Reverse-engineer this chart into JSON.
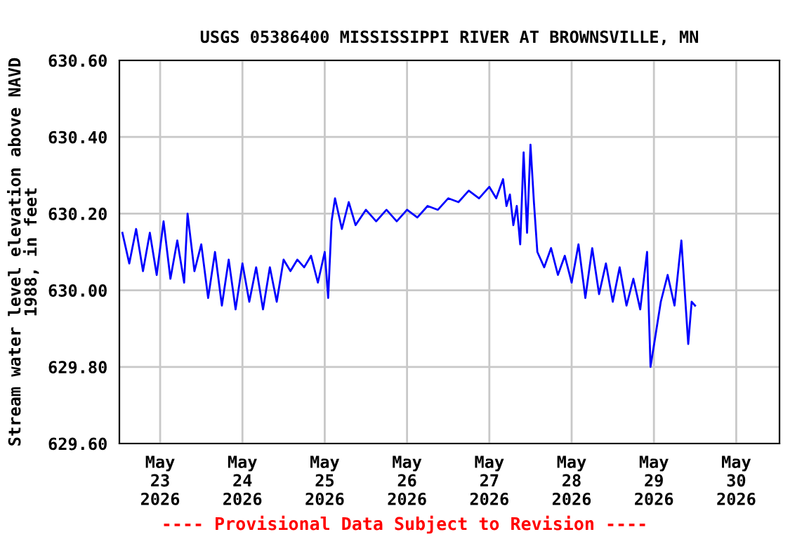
{
  "chart_data": {
    "type": "line",
    "title": "USGS 05386400 MISSISSIPPI RIVER AT BROWNSVILLE, MN",
    "ylabel": "Stream water level elevation above NAVD\n1988, in feet",
    "annotations": [
      "---- Provisional Data Subject to Revision ----"
    ],
    "x": [
      "2026-05-22T13:00",
      "2026-05-22T15:00",
      "2026-05-22T17:00",
      "2026-05-22T19:00",
      "2026-05-22T21:00",
      "2026-05-22T23:00",
      "2026-05-23T01:00",
      "2026-05-23T03:00",
      "2026-05-23T05:00",
      "2026-05-23T07:00",
      "2026-05-23T08:00",
      "2026-05-23T10:00",
      "2026-05-23T12:00",
      "2026-05-23T14:00",
      "2026-05-23T16:00",
      "2026-05-23T18:00",
      "2026-05-23T20:00",
      "2026-05-23T22:00",
      "2026-05-24T00:00",
      "2026-05-24T02:00",
      "2026-05-24T04:00",
      "2026-05-24T06:00",
      "2026-05-24T08:00",
      "2026-05-24T10:00",
      "2026-05-24T12:00",
      "2026-05-24T14:00",
      "2026-05-24T16:00",
      "2026-05-24T18:00",
      "2026-05-24T20:00",
      "2026-05-24T22:00",
      "2026-05-25T00:00",
      "2026-05-25T01:00",
      "2026-05-25T02:00",
      "2026-05-25T03:00",
      "2026-05-25T05:00",
      "2026-05-25T07:00",
      "2026-05-25T09:00",
      "2026-05-25T12:00",
      "2026-05-25T15:00",
      "2026-05-25T18:00",
      "2026-05-25T21:00",
      "2026-05-26T00:00",
      "2026-05-26T03:00",
      "2026-05-26T06:00",
      "2026-05-26T09:00",
      "2026-05-26T12:00",
      "2026-05-26T15:00",
      "2026-05-26T18:00",
      "2026-05-26T21:00",
      "2026-05-27T00:00",
      "2026-05-27T02:00",
      "2026-05-27T04:00",
      "2026-05-27T05:00",
      "2026-05-27T06:00",
      "2026-05-27T07:00",
      "2026-05-27T08:00",
      "2026-05-27T09:00",
      "2026-05-27T10:00",
      "2026-05-27T11:00",
      "2026-05-27T12:00",
      "2026-05-27T13:00",
      "2026-05-27T14:00",
      "2026-05-27T16:00",
      "2026-05-27T18:00",
      "2026-05-27T20:00",
      "2026-05-27T22:00",
      "2026-05-28T00:00",
      "2026-05-28T02:00",
      "2026-05-28T04:00",
      "2026-05-28T06:00",
      "2026-05-28T08:00",
      "2026-05-28T10:00",
      "2026-05-28T12:00",
      "2026-05-28T14:00",
      "2026-05-28T16:00",
      "2026-05-28T18:00",
      "2026-05-28T20:00",
      "2026-05-28T22:00",
      "2026-05-28T23:00",
      "2026-05-29T02:00",
      "2026-05-29T04:00",
      "2026-05-29T06:00",
      "2026-05-29T08:00",
      "2026-05-29T10:00",
      "2026-05-29T11:00",
      "2026-05-29T12:00"
    ],
    "series": [
      {
        "color": "#0000ff",
        "values": [
          630.15,
          630.07,
          630.16,
          630.05,
          630.15,
          630.04,
          630.18,
          630.03,
          630.13,
          630.02,
          630.2,
          630.05,
          630.12,
          629.98,
          630.1,
          629.96,
          630.08,
          629.95,
          630.07,
          629.97,
          630.06,
          629.95,
          630.06,
          629.97,
          630.08,
          630.05,
          630.08,
          630.06,
          630.09,
          630.02,
          630.1,
          629.98,
          630.18,
          630.24,
          630.16,
          630.23,
          630.17,
          630.21,
          630.18,
          630.21,
          630.18,
          630.21,
          630.19,
          630.22,
          630.21,
          630.24,
          630.23,
          630.26,
          630.24,
          630.27,
          630.24,
          630.29,
          630.22,
          630.25,
          630.17,
          630.22,
          630.12,
          630.36,
          630.15,
          630.38,
          630.23,
          630.1,
          630.06,
          630.11,
          630.04,
          630.09,
          630.02,
          630.12,
          629.98,
          630.11,
          629.99,
          630.07,
          629.97,
          630.06,
          629.96,
          630.03,
          629.95,
          630.1,
          629.8,
          629.97,
          630.04,
          629.96,
          630.13,
          629.86,
          629.97,
          629.96
        ]
      }
    ],
    "xlim": [
      "2026-05-22T12:07",
      "2026-05-30T12:37"
    ],
    "xticks": [
      {
        "value": "2026-05-23",
        "label": "May\n23\n2026"
      },
      {
        "value": "2026-05-24",
        "label": "May\n24\n2026"
      },
      {
        "value": "2026-05-25",
        "label": "May\n25\n2026"
      },
      {
        "value": "2026-05-26",
        "label": "May\n26\n2026"
      },
      {
        "value": "2026-05-27",
        "label": "May\n27\n2026"
      },
      {
        "value": "2026-05-28",
        "label": "May\n28\n2026"
      },
      {
        "value": "2026-05-29",
        "label": "May\n29\n2026"
      },
      {
        "value": "2026-05-30",
        "label": "May\n30\n2026"
      }
    ],
    "ylim": [
      629.6,
      630.6
    ],
    "yticks": [
      {
        "value": 629.6,
        "label": "629.60"
      },
      {
        "value": 629.8,
        "label": "629.80"
      },
      {
        "value": 630.0,
        "label": "630.00"
      },
      {
        "value": 630.2,
        "label": "630.20"
      },
      {
        "value": 630.4,
        "label": "630.40"
      },
      {
        "value": 630.6,
        "label": "630.60"
      }
    ],
    "grid": true,
    "legend": false,
    "marker": "none",
    "line_style": "solid"
  }
}
